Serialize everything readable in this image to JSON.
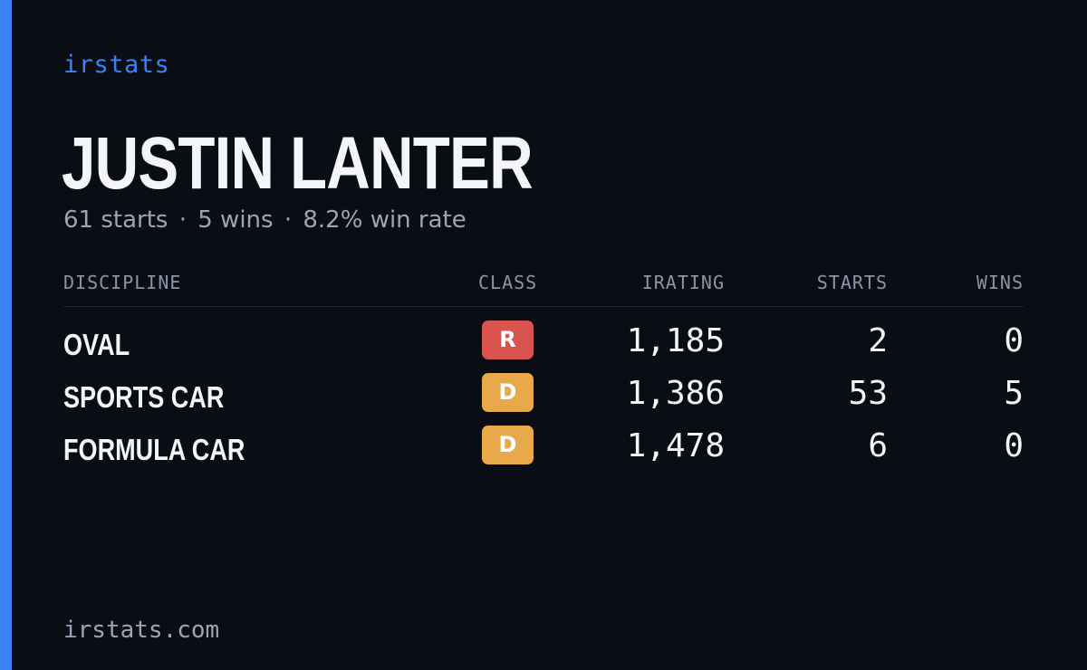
{
  "brand": "irstats",
  "driver": {
    "name": "JUSTIN LANTER",
    "starts_text": "61 starts",
    "wins_text": "5 wins",
    "win_rate_text": "8.2% win rate",
    "separator": "·"
  },
  "table": {
    "headers": {
      "discipline": "DISCIPLINE",
      "class": "CLASS",
      "irating": "IRATING",
      "starts": "STARTS",
      "wins": "WINS"
    },
    "rows": [
      {
        "discipline": "OVAL",
        "class": "R",
        "class_color": "#d9534f",
        "irating": "1,185",
        "starts": "2",
        "wins": "0"
      },
      {
        "discipline": "SPORTS CAR",
        "class": "D",
        "class_color": "#e8a94a",
        "irating": "1,386",
        "starts": "53",
        "wins": "5"
      },
      {
        "discipline": "FORMULA CAR",
        "class": "D",
        "class_color": "#e8a94a",
        "irating": "1,478",
        "starts": "6",
        "wins": "0"
      }
    ]
  },
  "footer": "irstats.com",
  "colors": {
    "accent": "#3b82f6",
    "background": "#0a0d14",
    "class_R": "#d9534f",
    "class_D": "#e8a94a"
  }
}
